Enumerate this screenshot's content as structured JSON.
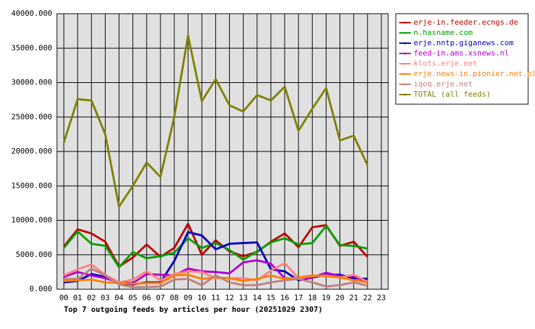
{
  "chart_data": {
    "type": "line",
    "title": "Top 7 outgoing feeds by articles per hour (20251029 2307)",
    "categories": [
      "00",
      "01",
      "02",
      "03",
      "04",
      "05",
      "06",
      "07",
      "08",
      "09",
      "10",
      "11",
      "12",
      "13",
      "14",
      "15",
      "16",
      "17",
      "18",
      "19",
      "20",
      "21",
      "22",
      "23"
    ],
    "ylim": [
      0,
      40000
    ],
    "yticks": [
      {
        "value": 0,
        "label": "0.000"
      },
      {
        "value": 5000,
        "label": "5000.000"
      },
      {
        "value": 10000,
        "label": "10000.000"
      },
      {
        "value": 15000,
        "label": "15000.000"
      },
      {
        "value": 20000,
        "label": "20000.000"
      },
      {
        "value": 25000,
        "label": "25000.000"
      },
      {
        "value": 30000,
        "label": "30000.000"
      },
      {
        "value": 35000,
        "label": "35000.000"
      },
      {
        "value": 40000,
        "label": "40000.000"
      }
    ],
    "grid": true,
    "legend": "right",
    "series": [
      {
        "name": "erje-in.feeder.ecngs.de",
        "color": "#c00000",
        "values": [
          6200,
          8700,
          8100,
          6900,
          3300,
          4600,
          6500,
          4700,
          6000,
          9500,
          5000,
          7100,
          5500,
          4800,
          5400,
          6900,
          8100,
          6100,
          9000,
          9300,
          6300,
          6900,
          4700,
          null
        ]
      },
      {
        "name": "n.hasname.com",
        "color": "#00a000",
        "values": [
          6000,
          8400,
          6600,
          6300,
          3200,
          5400,
          4500,
          4800,
          5300,
          7400,
          6000,
          6700,
          5700,
          4300,
          5500,
          6800,
          7400,
          6500,
          6700,
          9200,
          6400,
          6300,
          5900,
          null
        ]
      },
      {
        "name": "erje.nntp.giganews.com",
        "color": "#0000c0",
        "values": [
          1000,
          1200,
          2200,
          1800,
          900,
          700,
          1000,
          1000,
          4100,
          8300,
          7800,
          5800,
          6600,
          6700,
          6800,
          2900,
          2600,
          1300,
          1700,
          2100,
          2100,
          1600,
          1500,
          null
        ]
      },
      {
        "name": "feed-in.ams.xsnews.nl",
        "color": "#b000d0",
        "values": [
          1800,
          2500,
          2000,
          1600,
          1000,
          900,
          2200,
          2100,
          2000,
          3000,
          2600,
          2500,
          2300,
          3900,
          4200,
          3700,
          1600,
          1500,
          1700,
          2400,
          1900,
          1900,
          1000,
          null
        ]
      },
      {
        "name": "klots.erje.net",
        "color": "#ff8080",
        "values": [
          2000,
          2900,
          3600,
          2100,
          1000,
          1400,
          2600,
          1300,
          2200,
          2600,
          2500,
          1600,
          1600,
          1600,
          1300,
          2700,
          3800,
          1600,
          1900,
          2000,
          1700,
          2100,
          1100,
          null
        ]
      },
      {
        "name": "erje.news-in.pionier.net.pl",
        "color": "#ff8000",
        "values": [
          1200,
          1300,
          1400,
          1000,
          900,
          800,
          900,
          900,
          2000,
          2100,
          1500,
          1700,
          1600,
          1200,
          1500,
          2000,
          1500,
          1700,
          2000,
          1900,
          1700,
          1300,
          1000,
          null
        ]
      },
      {
        "name": "iqoq.erje.net",
        "color": "#c08080",
        "values": [
          1500,
          1500,
          3000,
          2000,
          700,
          300,
          300,
          400,
          1400,
          1500,
          600,
          2000,
          1000,
          600,
          600,
          1000,
          1300,
          1500,
          1000,
          400,
          600,
          1000,
          500,
          null
        ]
      },
      {
        "name": "TOTAL (all feeds)",
        "color": "#808000",
        "values": [
          21300,
          27600,
          27400,
          22500,
          12000,
          15000,
          18400,
          16300,
          25000,
          36800,
          27300,
          30500,
          26700,
          25800,
          28200,
          27400,
          29400,
          23000,
          26200,
          29200,
          21600,
          22300,
          18000,
          null
        ]
      }
    ]
  }
}
